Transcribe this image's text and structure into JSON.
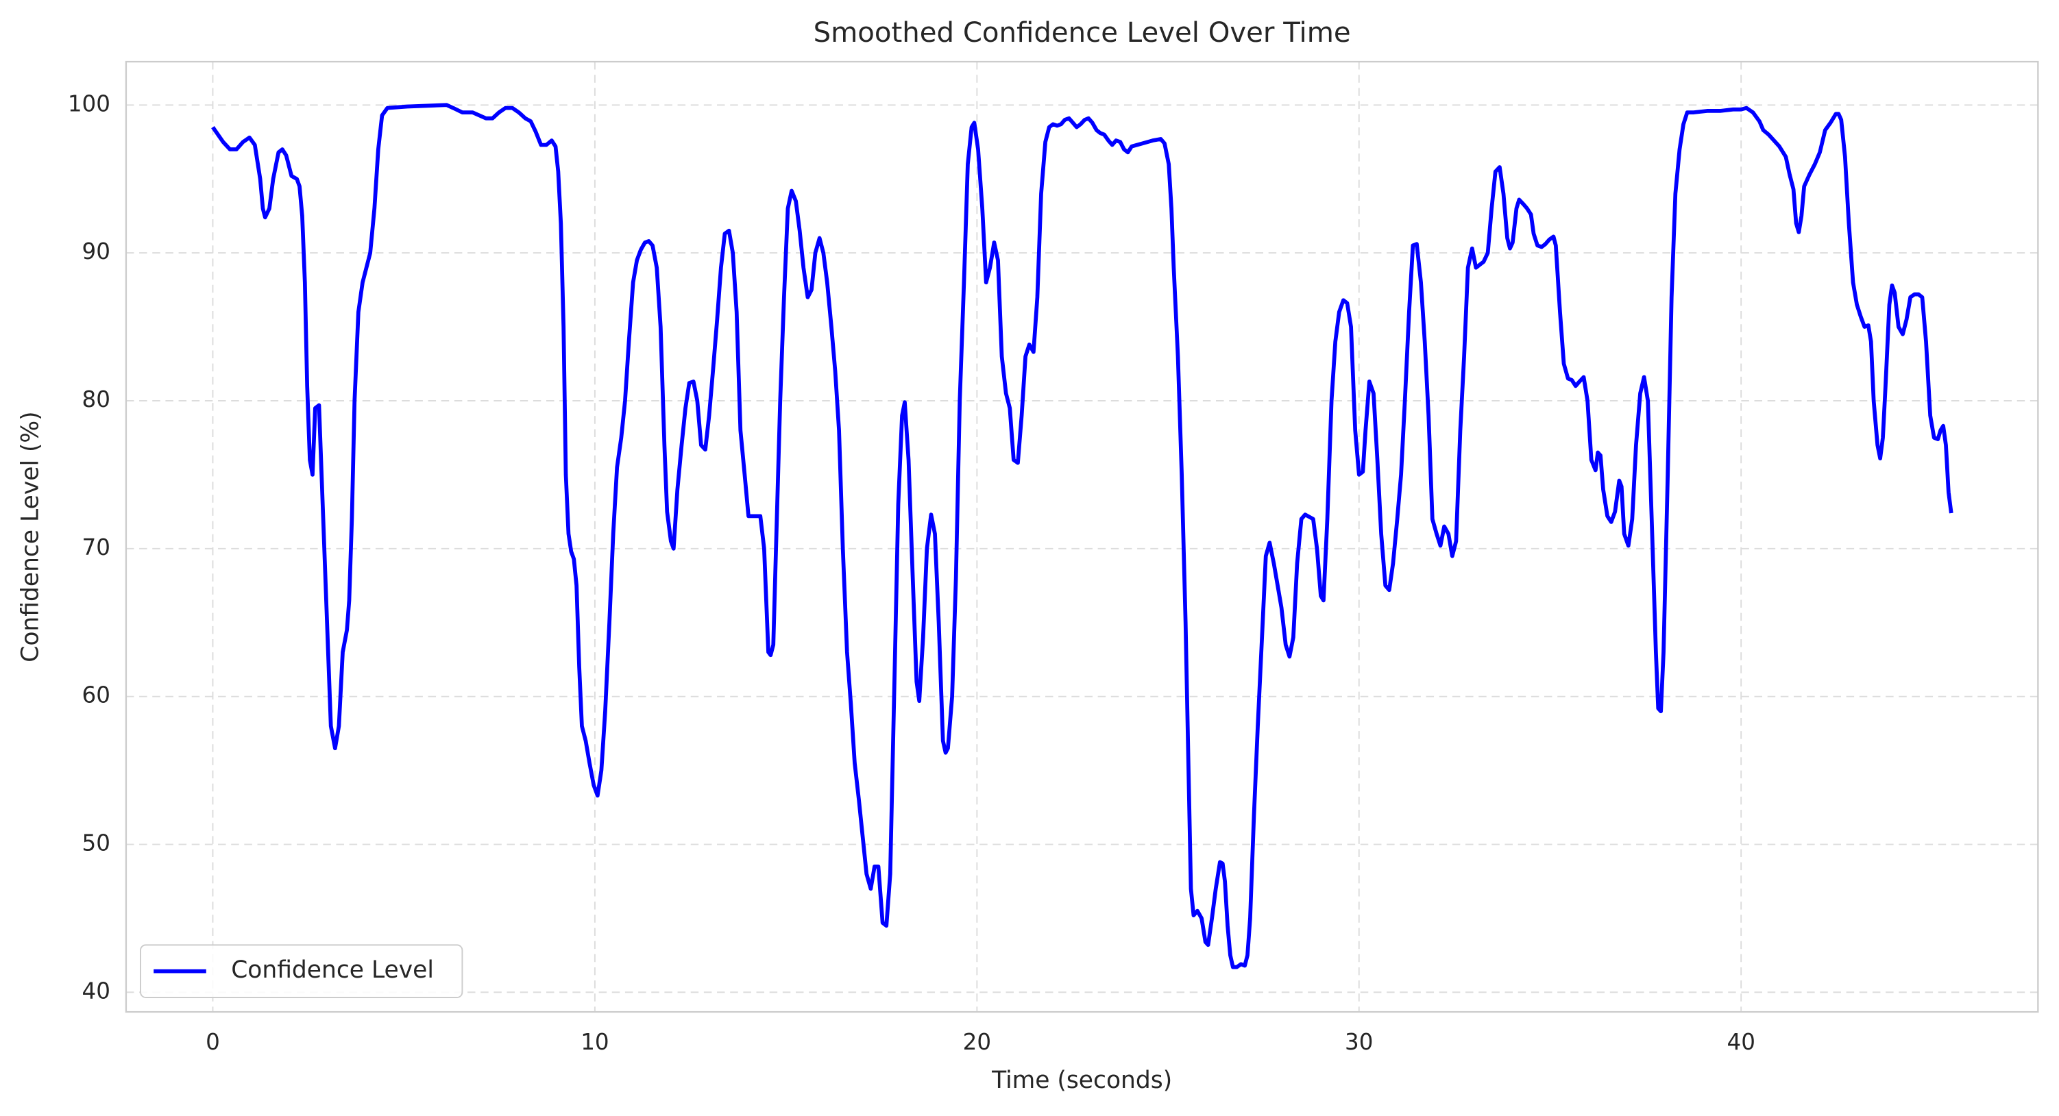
{
  "chart_data": {
    "type": "line",
    "title": "Smoothed Confidence Level Over Time",
    "x_label": "Time (seconds)",
    "y_label": "Confidence Level (%)",
    "xlim": [
      -2.27,
      47.77
    ],
    "ylim": [
      38.67,
      102.93
    ],
    "xticks": [
      0,
      10,
      20,
      30,
      40
    ],
    "yticks": [
      40,
      50,
      60,
      70,
      80,
      90,
      100
    ],
    "grid": true,
    "legend": "lower left",
    "x": [
      0,
      0.27,
      0.45,
      0.62,
      0.79,
      0.96,
      1.1,
      1.24,
      1.31,
      1.37,
      1.48,
      1.58,
      1.72,
      1.82,
      1.92,
      2.06,
      2.2,
      2.27,
      2.34,
      2.41,
      2.47,
      2.54,
      2.61,
      2.68,
      2.78,
      2.89,
      2.99,
      3.09,
      3.2,
      3.3,
      3.4,
      3.51,
      3.57,
      3.64,
      3.71,
      3.81,
      3.92,
      4.02,
      4.12,
      4.23,
      4.33,
      4.43,
      4.57,
      5.09,
      6.12,
      6.29,
      6.53,
      6.8,
      7.15,
      7.32,
      7.49,
      7.66,
      7.84,
      8.01,
      8.18,
      8.32,
      8.45,
      8.59,
      8.73,
      8.87,
      8.97,
      9.04,
      9.11,
      9.18,
      9.24,
      9.31,
      9.38,
      9.45,
      9.52,
      9.59,
      9.66,
      9.76,
      9.86,
      9.97,
      10.07,
      10.17,
      10.27,
      10.38,
      10.48,
      10.58,
      10.69,
      10.79,
      10.89,
      11.0,
      11.1,
      11.2,
      11.31,
      11.41,
      11.51,
      11.62,
      11.72,
      11.82,
      11.89,
      11.99,
      12.06,
      12.16,
      12.27,
      12.37,
      12.47,
      12.58,
      12.68,
      12.78,
      12.89,
      12.99,
      13.09,
      13.2,
      13.3,
      13.4,
      13.51,
      13.61,
      13.71,
      13.81,
      13.92,
      14.02,
      14.33,
      14.43,
      14.54,
      14.6,
      14.67,
      14.74,
      14.85,
      14.95,
      15.05,
      15.15,
      15.26,
      15.36,
      15.46,
      15.57,
      15.67,
      15.77,
      15.88,
      15.98,
      16.08,
      16.19,
      16.29,
      16.39,
      16.49,
      16.6,
      16.7,
      16.8,
      16.91,
      17.01,
      17.11,
      17.22,
      17.32,
      17.42,
      17.53,
      17.63,
      17.73,
      17.84,
      17.94,
      18.04,
      18.11,
      18.21,
      18.32,
      18.42,
      18.49,
      18.59,
      18.69,
      18.8,
      18.9,
      19.0,
      19.11,
      19.18,
      19.24,
      19.35,
      19.45,
      19.55,
      19.66,
      19.76,
      19.86,
      19.93,
      20.03,
      20.14,
      20.24,
      20.34,
      20.45,
      20.55,
      20.65,
      20.76,
      20.86,
      20.96,
      21.07,
      21.17,
      21.27,
      21.37,
      21.48,
      21.58,
      21.68,
      21.79,
      21.89,
      21.99,
      22.1,
      22.2,
      22.3,
      22.41,
      22.51,
      22.61,
      22.71,
      22.82,
      22.92,
      23.02,
      23.13,
      23.23,
      23.33,
      23.44,
      23.54,
      23.64,
      23.75,
      23.85,
      23.95,
      24.05,
      24.33,
      24.6,
      24.81,
      24.91,
      25.02,
      25.09,
      25.15,
      25.26,
      25.36,
      25.46,
      25.53,
      25.6,
      25.67,
      25.77,
      25.88,
      25.98,
      26.05,
      26.15,
      26.25,
      26.36,
      26.43,
      26.49,
      26.56,
      26.63,
      26.7,
      26.8,
      26.91,
      27.01,
      27.08,
      27.15,
      27.25,
      27.35,
      27.46,
      27.56,
      27.66,
      27.77,
      27.87,
      27.97,
      28.08,
      28.18,
      28.28,
      28.38,
      28.49,
      28.59,
      28.8,
      28.9,
      29.0,
      29.07,
      29.17,
      29.28,
      29.38,
      29.48,
      29.59,
      29.69,
      29.79,
      29.9,
      30.0,
      30.1,
      30.17,
      30.27,
      30.38,
      30.48,
      30.58,
      30.69,
      30.79,
      30.89,
      31.0,
      31.1,
      31.2,
      31.31,
      31.41,
      31.51,
      31.62,
      31.72,
      31.82,
      31.92,
      32.03,
      32.13,
      32.23,
      32.34,
      32.44,
      32.54,
      32.65,
      32.75,
      32.85,
      32.96,
      33.06,
      33.16,
      33.26,
      33.37,
      33.47,
      33.57,
      33.68,
      33.78,
      33.88,
      33.95,
      34.02,
      34.12,
      34.19,
      34.3,
      34.4,
      34.5,
      34.57,
      34.67,
      34.78,
      34.88,
      34.98,
      35.09,
      35.15,
      35.26,
      35.36,
      35.47,
      35.57,
      35.67,
      35.77,
      35.88,
      35.98,
      36.08,
      36.19,
      36.25,
      36.32,
      36.39,
      36.5,
      36.6,
      36.7,
      36.81,
      36.87,
      36.94,
      37.05,
      37.15,
      37.25,
      37.36,
      37.46,
      37.56,
      37.66,
      37.77,
      37.83,
      37.9,
      37.97,
      38.08,
      38.18,
      38.28,
      38.39,
      38.49,
      38.59,
      38.76,
      39.11,
      39.45,
      39.79,
      40.0,
      40.14,
      40.31,
      40.48,
      40.58,
      40.72,
      40.86,
      41.0,
      41.17,
      41.27,
      41.37,
      41.44,
      41.51,
      41.58,
      41.65,
      41.79,
      41.93,
      42.06,
      42.2,
      42.34,
      42.48,
      42.55,
      42.62,
      42.72,
      42.82,
      42.93,
      43.03,
      43.13,
      43.23,
      43.33,
      43.4,
      43.47,
      43.57,
      43.64,
      43.71,
      43.78,
      43.88,
      43.95,
      44.02,
      44.12,
      44.23,
      44.33,
      44.43,
      44.54,
      44.64,
      44.74,
      44.84,
      44.95,
      45.05,
      45.15,
      45.22,
      45.29,
      45.36,
      45.43,
      45.5
    ],
    "series": [
      {
        "name": "Confidence Level",
        "color": "#0000ff",
        "values": [
          98.5,
          97.5,
          97,
          97,
          97.5,
          97.8,
          97.3,
          95,
          93,
          92.4,
          93,
          95,
          96.8,
          97,
          96.6,
          95.2,
          95,
          94.5,
          92.5,
          88,
          81,
          76,
          75,
          79.5,
          79.7,
          72,
          65,
          58,
          56.5,
          58,
          63,
          64.5,
          66.5,
          72,
          80,
          86,
          88,
          89,
          90,
          93,
          97,
          99.3,
          99.8,
          99.9,
          100,
          99.8,
          99.5,
          99.5,
          99.1,
          99.1,
          99.5,
          99.8,
          99.8,
          99.5,
          99.1,
          98.9,
          98.2,
          97.3,
          97.3,
          97.6,
          97.2,
          95.5,
          92,
          85,
          75,
          71,
          69.8,
          69.3,
          67.5,
          62,
          58,
          57,
          55.5,
          54,
          53.3,
          55,
          59,
          65,
          71,
          75.5,
          77.5,
          80,
          84,
          88,
          89.5,
          90.2,
          90.7,
          90.8,
          90.5,
          89,
          85,
          77,
          72.5,
          70.5,
          70,
          74,
          77,
          79.5,
          81.2,
          81.3,
          80,
          77,
          76.7,
          79,
          82,
          85.5,
          89,
          91.3,
          91.5,
          90,
          86,
          78,
          75,
          72.2,
          72.2,
          70,
          63,
          62.8,
          63.5,
          70,
          80,
          87,
          93,
          94.2,
          93.5,
          91.5,
          89,
          87,
          87.5,
          90,
          91,
          90,
          88,
          85,
          82,
          78,
          70,
          63,
          59.5,
          55.5,
          53,
          50.5,
          48,
          47,
          48.5,
          48.5,
          44.7,
          44.5,
          48,
          61,
          73,
          79,
          79.9,
          76,
          68,
          61,
          59.7,
          64,
          70,
          72.3,
          71,
          65,
          57,
          56.2,
          56.5,
          60,
          68,
          80,
          88,
          96,
          98.5,
          98.8,
          97,
          93,
          88,
          89,
          90.7,
          89.5,
          83,
          80.5,
          79.5,
          76,
          75.8,
          79,
          83,
          83.8,
          83.3,
          87,
          94,
          97.5,
          98.5,
          98.7,
          98.6,
          98.7,
          99,
          99.1,
          98.8,
          98.5,
          98.7,
          99,
          99.1,
          98.8,
          98.3,
          98.1,
          98,
          97.6,
          97.3,
          97.6,
          97.5,
          97,
          96.8,
          97.2,
          97.4,
          97.6,
          97.7,
          97.4,
          96,
          93,
          89,
          83,
          75,
          65,
          56,
          47,
          45.2,
          45.5,
          45,
          43.4,
          43.2,
          45,
          47,
          48.8,
          48.7,
          47.5,
          44.5,
          42.5,
          41.7,
          41.7,
          41.9,
          41.8,
          42.5,
          45,
          52,
          58,
          64,
          69.5,
          70.4,
          69,
          67.5,
          66,
          63.5,
          62.7,
          64,
          69,
          72,
          72.3,
          72,
          70,
          66.8,
          66.5,
          72,
          80,
          84,
          86,
          86.8,
          86.6,
          85,
          78,
          75,
          75.2,
          78,
          81.3,
          80.5,
          76,
          71,
          67.5,
          67.2,
          69,
          72,
          75,
          80,
          86,
          90.5,
          90.6,
          88,
          84,
          79,
          72,
          71,
          70.2,
          71.5,
          71,
          69.5,
          70.5,
          78,
          83,
          89,
          90.3,
          89,
          89.2,
          89.4,
          90,
          93,
          95.5,
          95.8,
          94,
          91,
          90.3,
          90.7,
          93,
          93.6,
          93.3,
          93,
          92.6,
          91.3,
          90.5,
          90.4,
          90.6,
          90.9,
          91.1,
          90.5,
          86,
          82.5,
          81.5,
          81.4,
          81,
          81.3,
          81.6,
          80,
          76,
          75.3,
          76.5,
          76.3,
          74,
          72.2,
          71.8,
          72.5,
          74.6,
          74.2,
          71,
          70.2,
          72,
          77,
          80.5,
          81.6,
          80,
          72,
          63,
          59.2,
          59,
          63,
          75,
          87,
          94,
          97,
          98.7,
          99.5,
          99.5,
          99.6,
          99.6,
          99.7,
          99.7,
          99.8,
          99.5,
          98.9,
          98.3,
          98,
          97.6,
          97.2,
          96.5,
          95.3,
          94.3,
          92,
          91.4,
          92.5,
          94.5,
          95.3,
          96,
          96.8,
          98.3,
          98.8,
          99.4,
          99.4,
          99,
          96.5,
          92,
          88,
          86.5,
          85.7,
          85,
          85.1,
          84,
          80,
          77,
          76.1,
          77.5,
          81,
          86.5,
          87.8,
          87.3,
          85,
          84.5,
          85.5,
          87,
          87.2,
          87.2,
          87,
          84,
          79,
          77.5,
          77.4,
          78,
          78.3,
          77,
          73.8,
          72.4
        ]
      }
    ]
  }
}
